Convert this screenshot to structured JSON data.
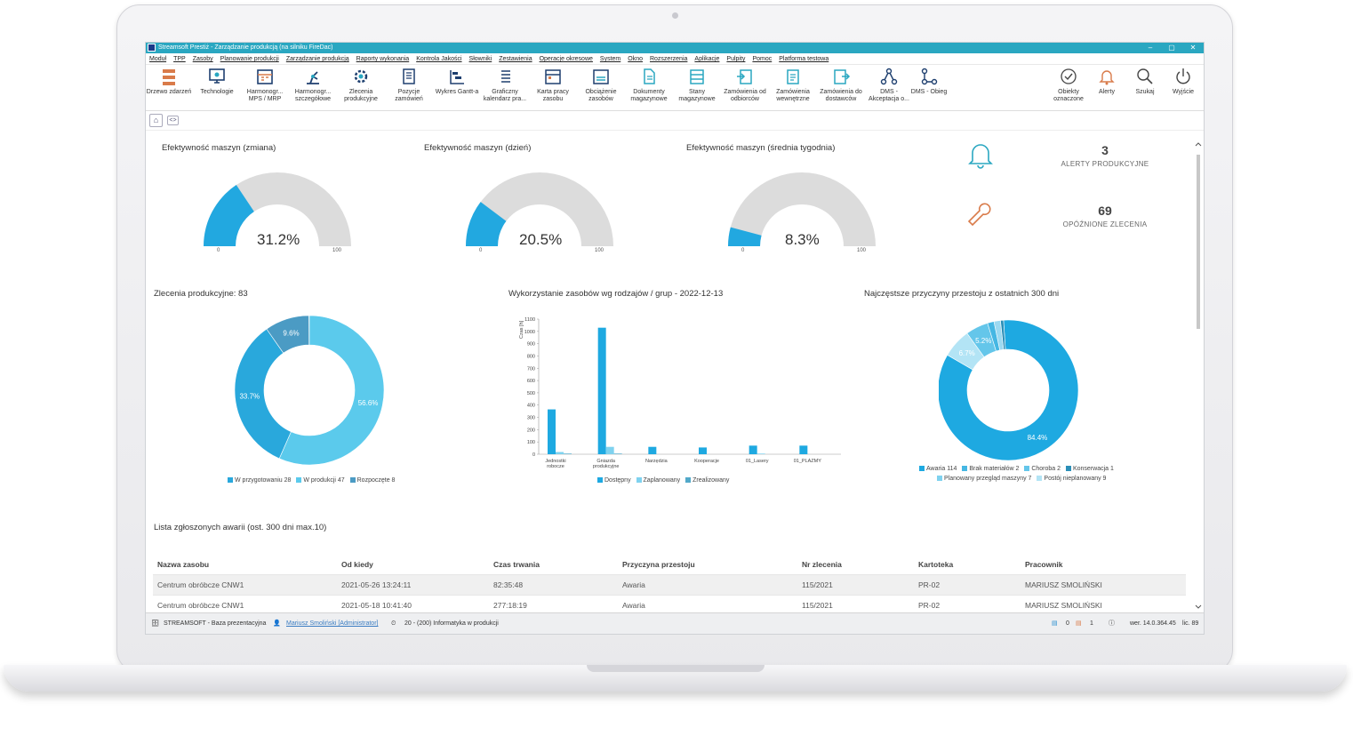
{
  "window": {
    "title": "Streamsoft Prestiż - Zarządzanie produkcją (na silniku FireDac)",
    "min": "‒",
    "max": "▢",
    "close": "✕"
  },
  "menu": [
    "Moduł",
    "TPP",
    "Zasoby",
    "Planowanie produkcji",
    "Zarządzanie produkcją",
    "Raporty wykonania",
    "Kontrola Jakości",
    "Słowniki",
    "Zestawienia",
    "Operacje okresowe",
    "System",
    "Okno",
    "Rozszerzenia",
    "Aplikacje",
    "Pulpity",
    "Pomoc",
    "Platforma testowa"
  ],
  "ribbon": {
    "drzewo": "Drzewo zdarzeń",
    "technologie": "Technologie",
    "harm_mps": "Harmonogr... MPS / MRP",
    "harm_szcz": "Harmonogr... szczegółowe",
    "zlecenia": "Zlecenia produkcyjne",
    "pozycje": "Pozycje zamówień",
    "gantt": "Wykres Gantt-a",
    "kalendarz": "Graficzny kalendarz pra...",
    "karta": "Karta pracy zasobu",
    "obciazenie": "Obciążenie zasobów",
    "dokumenty": "Dokumenty magazynowe",
    "stany": "Stany magazynowe",
    "zam_odb": "Zamówienia od odbiorców",
    "zam_wew": "Zamówienia wewnętrzne",
    "zam_dost": "Zamówienia do dostawców",
    "dms_akc": "DMS - Akceptacja o...",
    "dms_obieg": "DMS - Obieg",
    "obiekty": "Obiekty oznaczone",
    "alerty": "Alerty",
    "szukaj": "Szukaj",
    "wyjscie": "Wyjście"
  },
  "gauges": [
    {
      "title": "Efektywność maszyn (zmiana)",
      "value_text": "31.2%",
      "value": 31.2,
      "min": "0",
      "max": "100"
    },
    {
      "title": "Efektywność maszyn (dzień)",
      "value_text": "20.5%",
      "value": 20.5,
      "min": "0",
      "max": "100"
    },
    {
      "title": "Efektywność maszyn (średnia tygodnia)",
      "value_text": "8.3%",
      "value": 8.3,
      "min": "0",
      "max": "100"
    }
  ],
  "kpi": {
    "alerts_count": "3",
    "alerts_label": "ALERTY PRODUKCYJNE",
    "delayed_count": "69",
    "delayed_label": "OPÓŹNIONE ZLECENIA"
  },
  "donut1": {
    "title": "Zlecenia produkcyjne: 83",
    "slices": [
      {
        "pct": 56.6,
        "label": "56.6%",
        "color": "#5bcaec"
      },
      {
        "pct": 33.7,
        "label": "33.7%",
        "color": "#29a8dc"
      },
      {
        "pct": 9.6,
        "label": "9.6%",
        "color": "#4b9bc4"
      }
    ],
    "legend": [
      {
        "label": "W przygotowaniu 28",
        "color": "#29a8dc"
      },
      {
        "label": "W produkcji 47",
        "color": "#5bcaec"
      },
      {
        "label": "Rozpoczęte 8",
        "color": "#4b9bc4"
      }
    ]
  },
  "chart_data": {
    "type": "bar",
    "title": "Wykorzystanie zasobów wg rodzajów / grup - 2022-12-13",
    "ylabel": "Czas [h]",
    "ylim": [
      0,
      1100
    ],
    "yticks": [
      "0",
      "100",
      "200",
      "300",
      "400",
      "500",
      "600",
      "700",
      "800",
      "900",
      "1000",
      "1100"
    ],
    "categories": [
      "Jednostki robocze",
      "Gniazda produkcyjne",
      "Narzędzia",
      "Kooperacje",
      "01_Lasery",
      "01_PLAZMY"
    ],
    "series": [
      {
        "name": "Dostępny",
        "color": "#1ea9e1",
        "values": [
          365,
          1030,
          60,
          55,
          70,
          70
        ]
      },
      {
        "name": "Zaplanowany",
        "color": "#7fd2ef",
        "values": [
          18,
          60,
          0,
          0,
          5,
          0
        ]
      },
      {
        "name": "Zrealizowany",
        "color": "#52a9c9",
        "values": [
          5,
          5,
          0,
          0,
          0,
          0
        ]
      }
    ]
  },
  "donut2": {
    "title": "Najczęstsze przyczyny przestoju z ostatnich 300 dni",
    "slices": [
      {
        "pct": 84.4,
        "label": "84.4%",
        "color": "#1ea9e1"
      },
      {
        "pct": 6.7,
        "label": "6.7%",
        "color": "#b3e4f5"
      },
      {
        "pct": 5.2,
        "label": "5.2%",
        "color": "#64c6ea"
      },
      {
        "pct": 1.5,
        "label": "",
        "color": "#45b7e3"
      },
      {
        "pct": 1.5,
        "label": "",
        "color": "#9bd9f1"
      },
      {
        "pct": 0.7,
        "label": "",
        "color": "#2b8fb8"
      }
    ],
    "legend1": [
      {
        "label": "Awaria 114",
        "color": "#1ea9e1"
      },
      {
        "label": "Brak materiałów 2",
        "color": "#45b7e3"
      },
      {
        "label": "Choroba 2",
        "color": "#64c6ea"
      },
      {
        "label": "Konserwacja 1",
        "color": "#2b8fb8"
      }
    ],
    "legend2": [
      {
        "label": "Planowany przegląd maszyny 7",
        "color": "#7fd2ef"
      },
      {
        "label": "Postój nieplanowany 9",
        "color": "#b3e4f5"
      }
    ]
  },
  "failures": {
    "title": "Lista zgłoszonych awarii (ost. 300 dni max.10)",
    "headers": [
      "Nazwa zasobu",
      "Od kiedy",
      "Czas trwania",
      "Przyczyna przestoju",
      "Nr zlecenia",
      "Kartoteka",
      "Pracownik"
    ],
    "rows": [
      [
        "Centrum obróbcze CNW1",
        "2021-05-26 13:24:11",
        "82:35:48",
        "Awaria",
        "115/2021",
        "PR-02",
        "MARIUSZ SMOLIŃSKI"
      ],
      [
        "Centrum obróbcze CNW1",
        "2021-05-18 10:41:40",
        "277:18:19",
        "Awaria",
        "115/2021",
        "PR-02",
        "MARIUSZ SMOLIŃSKI"
      ]
    ]
  },
  "status": {
    "db": "STREAMSOFT - Baza prezentacyjna",
    "user": "Mariusz Smoliński [Administrator]",
    "dept": "20 - (200) Informatyka w produkcji",
    "c1": "0",
    "c2": "1",
    "version": "wer. 14.0.364.45",
    "lic": "lic. 89"
  }
}
